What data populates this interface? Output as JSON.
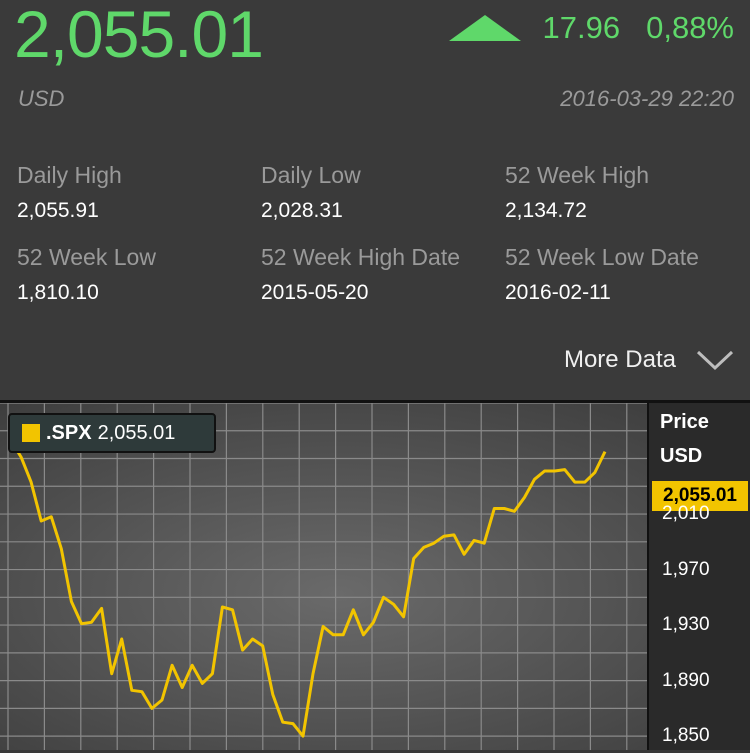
{
  "quote": {
    "price": "2,055.01",
    "change": "17.96",
    "change_pct": "0,88%",
    "currency": "USD",
    "timestamp": "2016-03-29 22:20",
    "accent_color": "#5fd86a"
  },
  "stats": [
    {
      "label": "Daily High",
      "value": "2,055.91"
    },
    {
      "label": "Daily Low",
      "value": "2,028.31"
    },
    {
      "label": "52 Week High",
      "value": "2,134.72"
    },
    {
      "label": "52 Week Low",
      "value": "1,810.10"
    },
    {
      "label": "52 Week High Date",
      "value": "2015-05-20"
    },
    {
      "label": "52 Week Low Date",
      "value": "2016-02-11"
    }
  ],
  "more_data": {
    "label": "More Data",
    "icon": "chevron-down-icon"
  },
  "chart_legend": {
    "symbol": ".SPX",
    "value": "2,055.01",
    "color": "#f2c400"
  },
  "chart_axis": {
    "title": "Price",
    "unit": "USD",
    "current_label": "2,055.01"
  },
  "chart_data": {
    "type": "line",
    "title": "",
    "xlabel": "",
    "ylabel": "Price",
    "grid": true,
    "ylim": [
      1840,
      2090
    ],
    "y_ticks": [
      {
        "value": 2010,
        "label": "2,010"
      },
      {
        "value": 1970,
        "label": "1,970"
      },
      {
        "value": 1930,
        "label": "1,930"
      },
      {
        "value": 1890,
        "label": "1,890"
      },
      {
        "value": 1850,
        "label": "1,850"
      }
    ],
    "series": [
      {
        "name": ".SPX",
        "color": "#f2c400",
        "values": [
          2063,
          2051,
          2033,
          2005,
          2008,
          1985,
          1947,
          1931,
          1932,
          1942,
          1895,
          1920,
          1883,
          1882,
          1870,
          1876,
          1901,
          1885,
          1901,
          1888,
          1895,
          1943,
          1941,
          1912,
          1920,
          1915,
          1880,
          1860,
          1859,
          1850,
          1895,
          1929,
          1923,
          1923,
          1941,
          1923,
          1932,
          1950,
          1945,
          1936,
          1978,
          1986,
          1989,
          1994,
          1995,
          1981,
          1991,
          1989,
          2014,
          2014,
          2012,
          2022,
          2035,
          2041,
          2041,
          2042,
          2033,
          2033,
          2040,
          2055.01
        ]
      }
    ]
  }
}
